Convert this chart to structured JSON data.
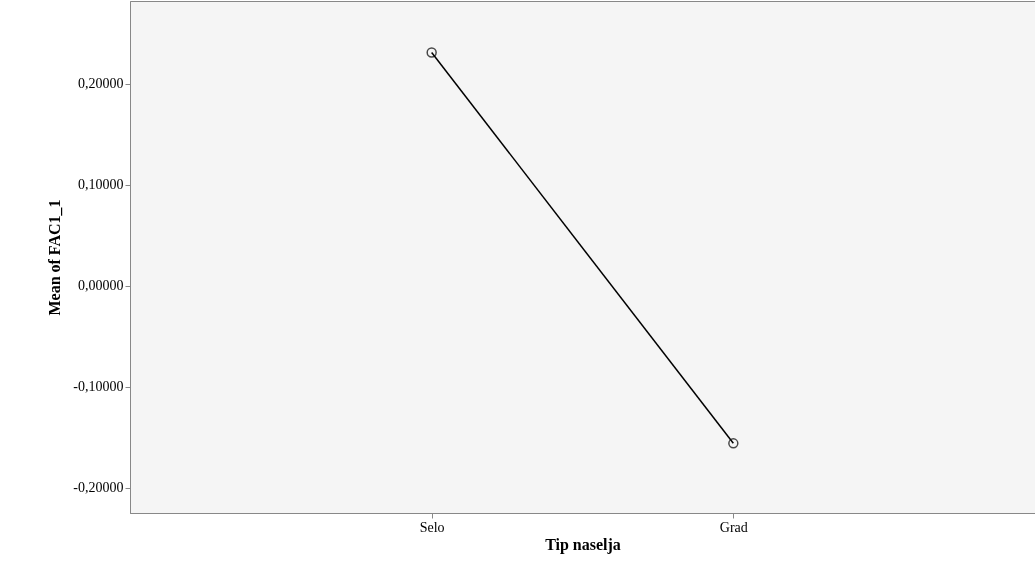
{
  "chart_data": {
    "type": "line",
    "xlabel": "Tip naselja",
    "ylabel": "Mean of FAC1_1",
    "categories": [
      "Selo",
      "Grad"
    ],
    "series": [
      {
        "color": "#000000",
        "values": [
          0.231,
          -0.156
        ]
      }
    ],
    "ylim": [
      -0.225,
      0.282
    ],
    "yticks": [
      {
        "value": -0.2,
        "label": "-0,20000"
      },
      {
        "value": -0.1,
        "label": "-0,10000"
      },
      {
        "value": 0,
        "label": "0,00000"
      },
      {
        "value": 0.1,
        "label": "0,10000"
      },
      {
        "value": 0.2,
        "label": "0,20000"
      }
    ],
    "grid": false,
    "marker": "circle",
    "line_style": "solid"
  }
}
